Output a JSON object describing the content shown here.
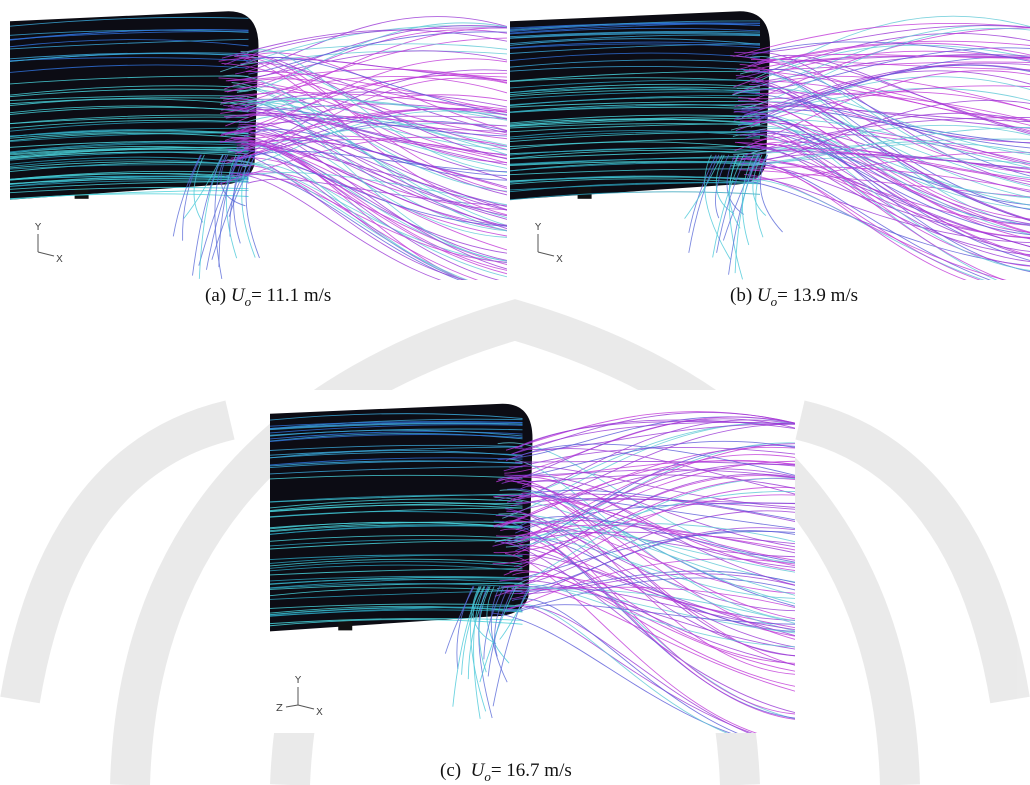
{
  "figures": [
    {
      "label": "(a)",
      "symbol": "U",
      "subscript": "o",
      "text": "= 11.1 m/s",
      "axes": [
        "Y",
        "X"
      ]
    },
    {
      "label": "(b)",
      "symbol": "U",
      "subscript": "o",
      "text": "= 13.9 m/s",
      "axes": [
        "Y",
        "X"
      ]
    },
    {
      "label": "(c)",
      "symbol": "U",
      "subscript": "o",
      "text": "= 16.7 m/s",
      "axes": [
        "Y",
        "Z",
        "X"
      ]
    }
  ]
}
